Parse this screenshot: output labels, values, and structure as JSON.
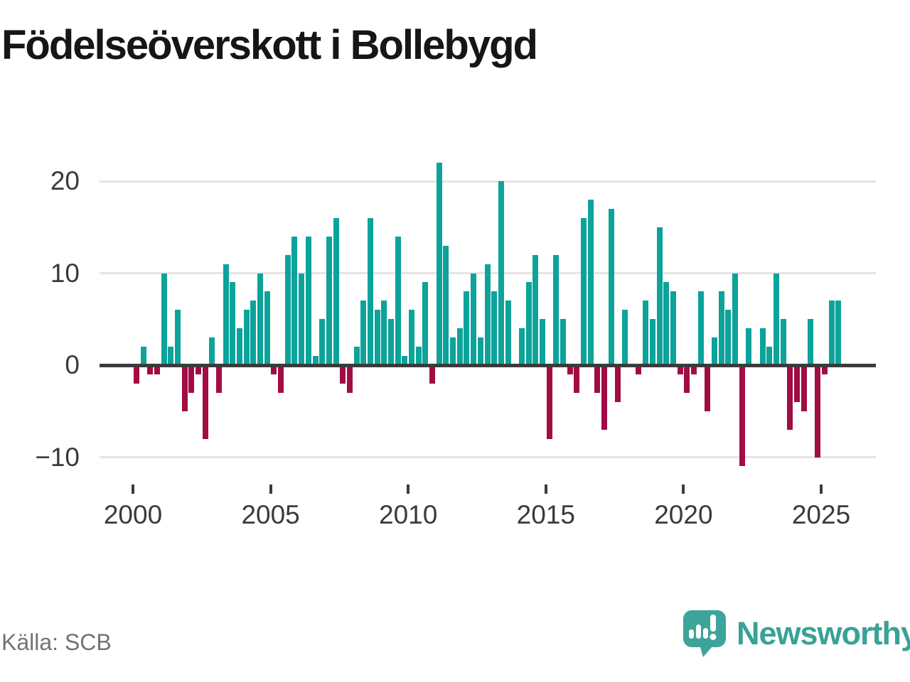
{
  "title": "Födelseöverskott i Bollebygd",
  "source": "Källa: SCB",
  "branding": {
    "logo_text": "Newsworthy"
  },
  "colors": {
    "positive_bar": "#0ca39b",
    "negative_bar": "#a20c45",
    "axis_line": "#3b3b3b",
    "gridline": "#e4e4e4",
    "tick_label": "#3a3a3a",
    "title_text": "#161616",
    "source_text": "#737373",
    "brand_teal": "#38a296"
  },
  "chart_data": {
    "type": "bar",
    "title": "Födelseöverskott i Bollebygd",
    "frequency": "quarterly",
    "series": [
      {
        "year": 2000,
        "values": [
          -2,
          2,
          -1,
          -1
        ]
      },
      {
        "year": 2001,
        "values": [
          10,
          2,
          6,
          -5
        ]
      },
      {
        "year": 2002,
        "values": [
          -3,
          -1,
          -8,
          3
        ]
      },
      {
        "year": 2003,
        "values": [
          -3,
          11,
          9,
          4
        ]
      },
      {
        "year": 2004,
        "values": [
          6,
          7,
          10,
          8
        ]
      },
      {
        "year": 2005,
        "values": [
          -1,
          -3,
          12,
          14
        ]
      },
      {
        "year": 2006,
        "values": [
          10,
          14,
          1,
          5
        ]
      },
      {
        "year": 2007,
        "values": [
          14,
          16,
          -2,
          -3
        ]
      },
      {
        "year": 2008,
        "values": [
          2,
          7,
          16,
          6
        ]
      },
      {
        "year": 2009,
        "values": [
          7,
          5,
          14,
          1
        ]
      },
      {
        "year": 2010,
        "values": [
          6,
          2,
          9,
          -2
        ]
      },
      {
        "year": 2011,
        "values": [
          22,
          13,
          3,
          4
        ]
      },
      {
        "year": 2012,
        "values": [
          8,
          10,
          3,
          11
        ]
      },
      {
        "year": 2013,
        "values": [
          8,
          20,
          7,
          0
        ]
      },
      {
        "year": 2014,
        "values": [
          4,
          9,
          12,
          5
        ]
      },
      {
        "year": 2015,
        "values": [
          -8,
          12,
          5,
          -1
        ]
      },
      {
        "year": 2016,
        "values": [
          -3,
          16,
          18,
          -3
        ]
      },
      {
        "year": 2017,
        "values": [
          -7,
          17,
          -4,
          6
        ]
      },
      {
        "year": 2018,
        "values": [
          0,
          -1,
          7,
          5
        ]
      },
      {
        "year": 2019,
        "values": [
          15,
          9,
          8,
          -1
        ]
      },
      {
        "year": 2020,
        "values": [
          -3,
          -1,
          8,
          -5
        ]
      },
      {
        "year": 2021,
        "values": [
          3,
          8,
          6,
          10
        ]
      },
      {
        "year": 2022,
        "values": [
          -11,
          4,
          0,
          4
        ]
      },
      {
        "year": 2023,
        "values": [
          2,
          10,
          5,
          -7
        ]
      },
      {
        "year": 2024,
        "values": [
          -4,
          -5,
          5,
          -10
        ]
      },
      {
        "year": 2025,
        "values": [
          -1,
          7,
          7
        ]
      }
    ],
    "x_ticks": [
      2000,
      2005,
      2010,
      2015,
      2020,
      2025
    ],
    "y_ticks": [
      20,
      10,
      0,
      -10
    ],
    "y_tick_labels": [
      "20",
      "10",
      "0",
      "−10"
    ],
    "ylim": [
      -13,
      23
    ],
    "grid": "horizontal",
    "legend": "none"
  }
}
